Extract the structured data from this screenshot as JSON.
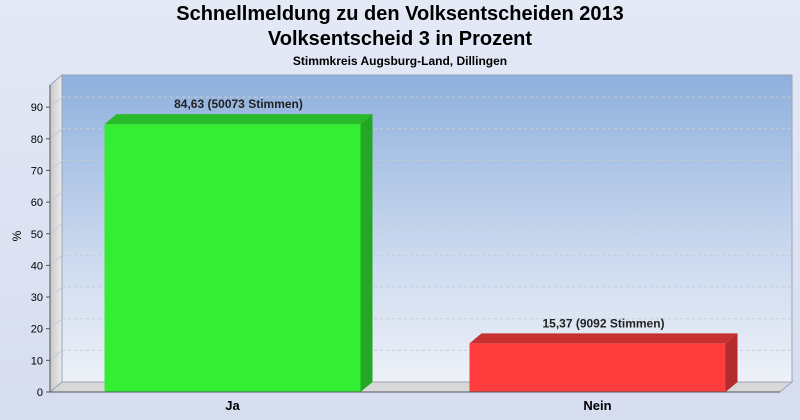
{
  "chart_data": {
    "type": "bar",
    "title": "Schnellmeldung zu den Volksentscheiden 2013",
    "subtitle": "Volksentscheid 3 in Prozent",
    "subsubtitle": "Stimmkreis Augsburg-Land, Dillingen",
    "ylabel": "%",
    "xlabel": "",
    "ylim": [
      0,
      97
    ],
    "yticks": [
      0,
      10,
      20,
      30,
      40,
      50,
      60,
      70,
      80,
      90
    ],
    "grid": true,
    "categories": [
      "Ja",
      "Nein"
    ],
    "values": [
      84.63,
      15.37
    ],
    "data_labels": [
      "84,63 (50073 Stimmen)",
      "15,37 (9092 Stimmen)"
    ],
    "colors": [
      "#33ee33",
      "#ff3d3d"
    ]
  }
}
